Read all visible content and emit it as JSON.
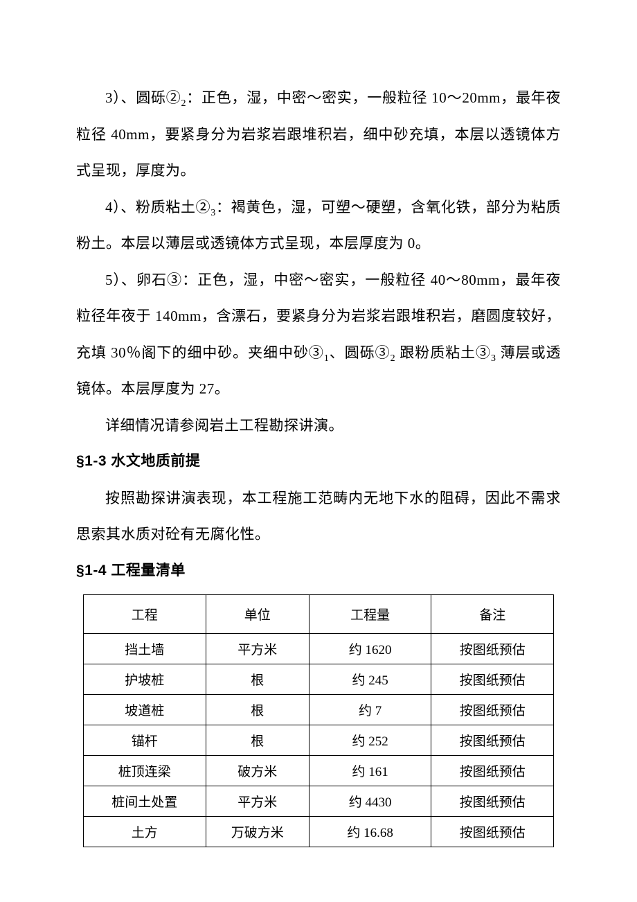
{
  "paragraphs": {
    "p1_part1": "3）、圆砾②",
    "p1_sub": "2",
    "p1_part2": "：正色，湿，中密～密实，一般粒径 10～20mm，最年夜粒径 40mm，要紧身分为岩浆岩跟堆积岩，细中砂充填，本层以透镜体方式呈现，厚度为。",
    "p2_part1": "4）、粉质粘土②",
    "p2_sub": "3",
    "p2_part2": "：褐黄色，湿，可塑～硬塑，含氧化铁，部分为粘质粉土。本层以薄层或透镜体方式呈现，本层厚度为 0。",
    "p3_part1": "5）、卵石③：正色，湿，中密～密实，一般粒径 40～80mm，最年夜粒径年夜于 140mm，含漂石，要紧身分为岩浆岩跟堆积岩，磨圆度较好，充填 30％阁下的细中砂。夹细中砂③",
    "p3_sub1": "1",
    "p3_part2": "、圆砾③",
    "p3_sub2": "2",
    "p3_part3": " 跟粉质粘土③",
    "p3_sub3": "3",
    "p3_part4": " 薄层或透镜体。本层厚度为 27。",
    "p4": "详细情况请参阅岩土工程勘探讲演。",
    "p5": "按照勘探讲演表现，本工程施工范畴内无地下水的阻碍，因此不需求思索其水质对砼有无腐化性。"
  },
  "headings": {
    "h1": "§1-3 水文地质前提",
    "h2": "§1-4 工程量清单"
  },
  "table": {
    "columns": [
      "工程",
      "单位",
      "工程量",
      "备注"
    ],
    "rows": [
      [
        "挡土墙",
        "平方米",
        "约 1620",
        "按图纸预估"
      ],
      [
        "护坡桩",
        "根",
        "约 245",
        "按图纸预估"
      ],
      [
        "坡道桩",
        "根",
        "约 7",
        "按图纸预估"
      ],
      [
        "锚杆",
        "根",
        "约 252",
        "按图纸预估"
      ],
      [
        "桩顶连梁",
        "破方米",
        "约 161",
        "按图纸预估"
      ],
      [
        "桩间土处置",
        "平方米",
        "约 4430",
        "按图纸预估"
      ],
      [
        "土方",
        "万破方米",
        "约 16.68",
        "按图纸预估"
      ]
    ]
  }
}
